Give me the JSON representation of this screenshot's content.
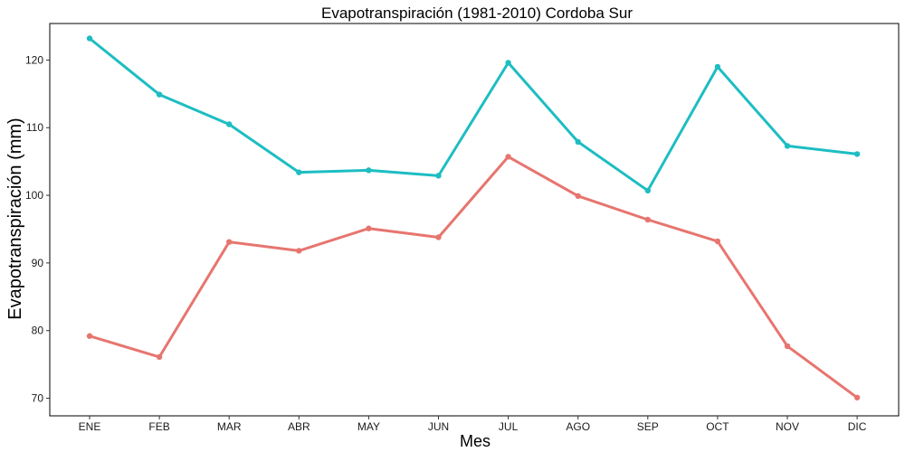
{
  "chart_data": {
    "type": "line",
    "title": "Evapotranspiración (1981-2010)  Cordoba Sur",
    "xlabel": "Mes",
    "ylabel": "Evapotranspiración (mm)",
    "categories": [
      "ENE",
      "FEB",
      "MAR",
      "ABR",
      "MAY",
      "JUN",
      "JUL",
      "AGO",
      "SEP",
      "OCT",
      "NOV",
      "DIC"
    ],
    "ylim": [
      67.4,
      125.4
    ],
    "yticks": [
      70,
      80,
      90,
      100,
      110,
      120
    ],
    "grid": false,
    "legend": "none",
    "series": [
      {
        "color": "#E7756F",
        "values": [
          79.2,
          76.1,
          93.1,
          91.8,
          95.1,
          93.8,
          105.7,
          99.9,
          96.4,
          93.2,
          77.7,
          70.1
        ]
      },
      {
        "color": "#1DBDC2",
        "values": [
          123.2,
          114.9,
          110.5,
          103.4,
          103.7,
          102.9,
          119.6,
          107.9,
          100.7,
          119.0,
          107.3,
          106.1
        ]
      }
    ]
  }
}
